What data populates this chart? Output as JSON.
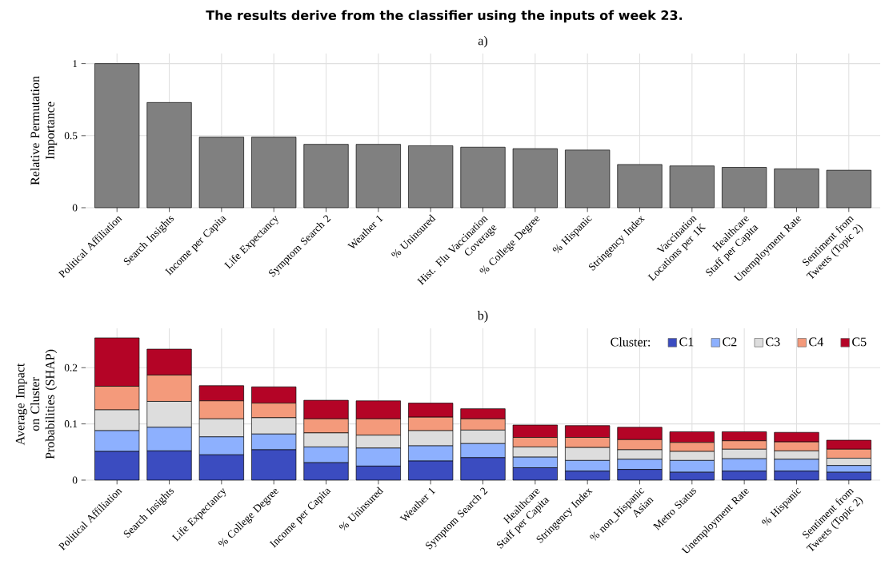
{
  "chart_data": [
    {
      "type": "bar",
      "title": "The results derive from the classifier using the inputs of week 23.",
      "subtitle": "a)",
      "ylabel": "Relative Permutation Importance",
      "categories": [
        "Political Affiliation",
        "Search Insights",
        "Income per Capita",
        "Life Expectancy",
        "Symptom Search 2",
        "Weather 1",
        "% Uninsured",
        "Hist. Flu Vaccination Coverage",
        "% College Degree",
        "% Hispanic",
        "Stringency Index",
        "Vaccination Locations per 1K",
        "Healthcare Staff per Capita",
        "Unemployment Rate",
        "Sentiment from Tweets (Topic 2)"
      ],
      "values": [
        1.0,
        0.73,
        0.49,
        0.49,
        0.44,
        0.44,
        0.43,
        0.42,
        0.41,
        0.4,
        0.3,
        0.29,
        0.28,
        0.27,
        0.26
      ],
      "color": "#808080",
      "ylim": [
        0,
        1.07
      ],
      "yticks": [
        0,
        0.5,
        1
      ],
      "grid": true
    },
    {
      "type": "bar",
      "title": "b)",
      "ylabel": "Average Impact on Cluster Probabilities (SHAP)",
      "stacked": true,
      "legend": "top right",
      "legend_title": "Cluster:",
      "categories": [
        "Political Affiliation",
        "Search Insights",
        "Life Expectancy",
        "% College Degree",
        "Income per Capita",
        "% Uninsured",
        "Weather 1",
        "Symptom Search 2",
        "Healthcare Staff per Capita",
        "Stringency Index",
        "% non_Hispanic Asian",
        "Metro Status",
        "Unemployment Rate",
        "% Hispanic",
        "Sentiment from Tweets (Topic 2)"
      ],
      "series": [
        {
          "name": "C1",
          "color": "#3b4cc0",
          "values": [
            0.051,
            0.052,
            0.045,
            0.054,
            0.031,
            0.025,
            0.034,
            0.04,
            0.022,
            0.016,
            0.019,
            0.014,
            0.016,
            0.016,
            0.014
          ]
        },
        {
          "name": "C2",
          "color": "#8db0fe",
          "values": [
            0.037,
            0.042,
            0.032,
            0.028,
            0.028,
            0.032,
            0.027,
            0.025,
            0.019,
            0.019,
            0.018,
            0.021,
            0.022,
            0.021,
            0.012
          ]
        },
        {
          "name": "C3",
          "color": "#dddddd",
          "values": [
            0.037,
            0.046,
            0.032,
            0.029,
            0.025,
            0.023,
            0.027,
            0.024,
            0.018,
            0.023,
            0.017,
            0.016,
            0.017,
            0.015,
            0.013
          ]
        },
        {
          "name": "C4",
          "color": "#f49a7b",
          "values": [
            0.042,
            0.047,
            0.032,
            0.026,
            0.025,
            0.029,
            0.024,
            0.02,
            0.017,
            0.018,
            0.018,
            0.016,
            0.015,
            0.016,
            0.016
          ]
        },
        {
          "name": "C5",
          "color": "#b40426",
          "values": [
            0.086,
            0.046,
            0.027,
            0.029,
            0.033,
            0.032,
            0.025,
            0.018,
            0.022,
            0.021,
            0.022,
            0.019,
            0.016,
            0.017,
            0.016
          ]
        }
      ],
      "ylim": [
        0,
        0.27
      ],
      "yticks": [
        0,
        0.1,
        0.2
      ],
      "grid": true
    }
  ]
}
